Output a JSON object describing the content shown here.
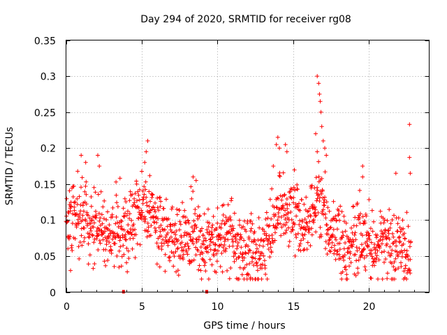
{
  "chart_data": {
    "type": "scatter",
    "title": "Day 294 of 2020, SRMTID for receiver rg08",
    "xlabel": "GPS time / hours",
    "ylabel": "SRMTID / TECUs",
    "xlim": [
      0,
      24
    ],
    "ylim": [
      0,
      0.35
    ],
    "xticks": [
      0,
      5,
      10,
      15,
      20
    ],
    "xtick_labels": [
      "0",
      "5",
      "10",
      "15",
      "20"
    ],
    "yticks": [
      0,
      0.05,
      0.1,
      0.15,
      0.2,
      0.25,
      0.3,
      0.35
    ],
    "ytick_labels": [
      "0",
      "0.05",
      "0.1",
      "0.15",
      "0.2",
      "0.25",
      "0.3",
      "0.35"
    ],
    "grid": true,
    "marker": "+",
    "color": "#ff0000",
    "series": [
      {
        "name": "SRMTID",
        "profile": [
          {
            "x": 0.0,
            "y": 0.09
          },
          {
            "x": 0.5,
            "y": 0.1
          },
          {
            "x": 1.0,
            "y": 0.11
          },
          {
            "x": 1.5,
            "y": 0.1
          },
          {
            "x": 2.0,
            "y": 0.085
          },
          {
            "x": 2.5,
            "y": 0.08
          },
          {
            "x": 3.0,
            "y": 0.085
          },
          {
            "x": 3.5,
            "y": 0.09
          },
          {
            "x": 4.0,
            "y": 0.09
          },
          {
            "x": 4.5,
            "y": 0.1
          },
          {
            "x": 5.0,
            "y": 0.12
          },
          {
            "x": 5.5,
            "y": 0.11
          },
          {
            "x": 6.0,
            "y": 0.09
          },
          {
            "x": 6.5,
            "y": 0.08
          },
          {
            "x": 7.0,
            "y": 0.08
          },
          {
            "x": 7.5,
            "y": 0.08
          },
          {
            "x": 8.0,
            "y": 0.085
          },
          {
            "x": 8.5,
            "y": 0.09
          },
          {
            "x": 9.0,
            "y": 0.06
          },
          {
            "x": 9.5,
            "y": 0.07
          },
          {
            "x": 10.0,
            "y": 0.075
          },
          {
            "x": 10.5,
            "y": 0.08
          },
          {
            "x": 11.0,
            "y": 0.07
          },
          {
            "x": 11.5,
            "y": 0.065
          },
          {
            "x": 12.0,
            "y": 0.055
          },
          {
            "x": 12.5,
            "y": 0.05
          },
          {
            "x": 13.0,
            "y": 0.06
          },
          {
            "x": 13.5,
            "y": 0.08
          },
          {
            "x": 14.0,
            "y": 0.11
          },
          {
            "x": 14.5,
            "y": 0.12
          },
          {
            "x": 15.0,
            "y": 0.11
          },
          {
            "x": 15.5,
            "y": 0.1
          },
          {
            "x": 16.0,
            "y": 0.1
          },
          {
            "x": 16.5,
            "y": 0.13
          },
          {
            "x": 17.0,
            "y": 0.12
          },
          {
            "x": 17.5,
            "y": 0.08
          },
          {
            "x": 18.0,
            "y": 0.07
          },
          {
            "x": 18.5,
            "y": 0.06
          },
          {
            "x": 19.0,
            "y": 0.065
          },
          {
            "x": 19.5,
            "y": 0.08
          },
          {
            "x": 20.0,
            "y": 0.075
          },
          {
            "x": 20.5,
            "y": 0.07
          },
          {
            "x": 21.0,
            "y": 0.07
          },
          {
            "x": 21.5,
            "y": 0.06
          },
          {
            "x": 22.0,
            "y": 0.07
          },
          {
            "x": 22.5,
            "y": 0.055
          },
          {
            "x": 22.8,
            "y": 0.06
          }
        ],
        "n_points": 1350,
        "spread": 0.032,
        "outliers": [
          {
            "x": 16.6,
            "y": 0.3
          },
          {
            "x": 16.7,
            "y": 0.29
          },
          {
            "x": 16.75,
            "y": 0.275
          },
          {
            "x": 16.8,
            "y": 0.265
          },
          {
            "x": 16.85,
            "y": 0.25
          },
          {
            "x": 16.9,
            "y": 0.23
          },
          {
            "x": 17.0,
            "y": 0.21
          },
          {
            "x": 17.1,
            "y": 0.2
          },
          {
            "x": 17.2,
            "y": 0.19
          },
          {
            "x": 16.5,
            "y": 0.22
          },
          {
            "x": 16.6,
            "y": 0.195
          },
          {
            "x": 22.7,
            "y": 0.233
          },
          {
            "x": 22.7,
            "y": 0.187
          },
          {
            "x": 22.75,
            "y": 0.165
          },
          {
            "x": 5.4,
            "y": 0.21
          },
          {
            "x": 5.3,
            "y": 0.195
          },
          {
            "x": 5.2,
            "y": 0.18
          },
          {
            "x": 14.0,
            "y": 0.215
          },
          {
            "x": 13.9,
            "y": 0.205
          },
          {
            "x": 14.1,
            "y": 0.2
          },
          {
            "x": 14.5,
            "y": 0.205
          },
          {
            "x": 14.6,
            "y": 0.195
          },
          {
            "x": 13.7,
            "y": 0.175
          },
          {
            "x": 1.0,
            "y": 0.19
          },
          {
            "x": 2.1,
            "y": 0.19
          },
          {
            "x": 2.2,
            "y": 0.175
          },
          {
            "x": 1.3,
            "y": 0.18
          },
          {
            "x": 8.4,
            "y": 0.16
          },
          {
            "x": 8.6,
            "y": 0.155
          },
          {
            "x": 19.6,
            "y": 0.175
          },
          {
            "x": 19.6,
            "y": 0.16
          },
          {
            "x": 21.8,
            "y": 0.165
          },
          {
            "x": 12.2,
            "y": 0.02
          },
          {
            "x": 22.4,
            "y": 0.02
          },
          {
            "x": 0.3,
            "y": 0.03
          },
          {
            "x": 6.2,
            "y": 0.035
          }
        ],
        "zero_markers": [
          {
            "x": 3.8,
            "y": 0
          },
          {
            "x": 9.3,
            "y": 0
          }
        ]
      }
    ]
  }
}
